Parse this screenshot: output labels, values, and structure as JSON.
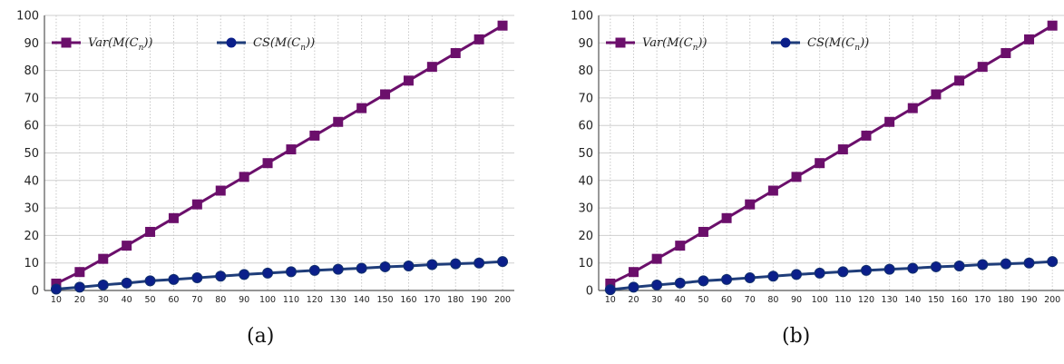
{
  "chart_data": [
    {
      "panel": "a",
      "type": "line",
      "caption": "(a)",
      "categories": [
        10,
        20,
        30,
        40,
        50,
        60,
        70,
        80,
        90,
        100,
        110,
        120,
        130,
        140,
        150,
        160,
        170,
        180,
        190,
        200
      ],
      "ylim": [
        0,
        100
      ],
      "yticks": [
        0,
        10,
        20,
        30,
        40,
        50,
        60,
        70,
        80,
        90,
        100
      ],
      "grid": true,
      "legend_position": "top-left",
      "series": [
        {
          "name": "Var(M(C_n))",
          "color": "#6b0f6b",
          "marker": "square",
          "values": [
            2.5,
            6.7,
            11.5,
            16.3,
            21.3,
            26.3,
            31.3,
            36.3,
            41.3,
            46.3,
            51.3,
            56.3,
            61.3,
            66.3,
            71.3,
            76.3,
            81.3,
            86.3,
            91.3,
            96.3
          ]
        },
        {
          "name": "CS(M(C_n))",
          "color": "#1f3d7a",
          "marker": "circle",
          "values": [
            0.5,
            1.2,
            2.0,
            2.7,
            3.5,
            4.0,
            4.6,
            5.2,
            5.8,
            6.3,
            6.8,
            7.3,
            7.7,
            8.1,
            8.6,
            8.9,
            9.4,
            9.7,
            10.0,
            10.5
          ]
        }
      ]
    },
    {
      "panel": "b",
      "type": "line",
      "caption": "(b)",
      "categories": [
        10,
        20,
        30,
        40,
        50,
        60,
        70,
        80,
        90,
        100,
        110,
        120,
        130,
        140,
        150,
        160,
        170,
        180,
        190,
        200
      ],
      "ylim": [
        0,
        100
      ],
      "yticks": [
        0,
        10,
        20,
        30,
        40,
        50,
        60,
        70,
        80,
        90,
        100
      ],
      "grid": true,
      "legend_position": "top-left",
      "series": [
        {
          "name": "Var(M(C_n))",
          "color": "#6b0f6b",
          "marker": "square",
          "values": [
            2.5,
            6.7,
            11.5,
            16.3,
            21.3,
            26.3,
            31.3,
            36.3,
            41.3,
            46.3,
            51.3,
            56.3,
            61.3,
            66.3,
            71.3,
            76.3,
            81.3,
            86.3,
            91.3,
            96.3
          ]
        },
        {
          "name": "CS(M(C_n))",
          "color": "#1f3d7a",
          "marker": "circle",
          "values": [
            0.3,
            1.2,
            2.0,
            2.7,
            3.5,
            4.0,
            4.6,
            5.2,
            5.8,
            6.3,
            6.8,
            7.3,
            7.7,
            8.1,
            8.6,
            8.9,
            9.4,
            9.7,
            10.0,
            10.5
          ]
        }
      ]
    }
  ]
}
